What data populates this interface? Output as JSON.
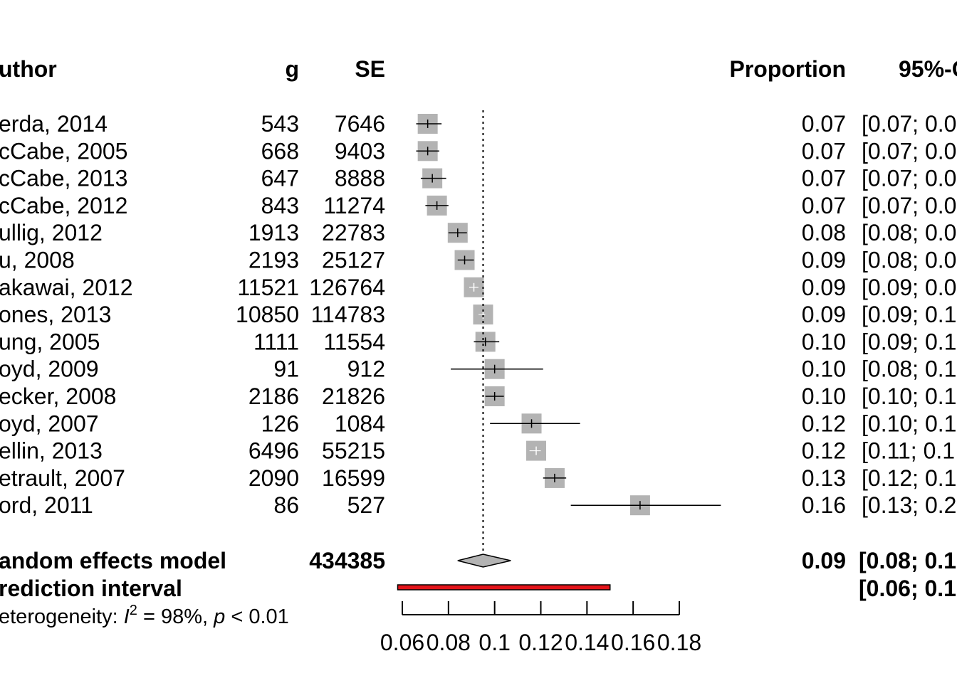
{
  "chart_data": {
    "type": "forest",
    "headers": {
      "author": "uthor",
      "g": "g",
      "se": "SE",
      "proportion": "Proportion",
      "ci": "95%-C"
    },
    "studies": [
      {
        "author": "erda, 2014",
        "g": "543",
        "se": "7646",
        "prop": 0.071,
        "lower": 0.066,
        "upper": 0.077,
        "weight": 1.0,
        "prop_label": "0.07",
        "ci_label": "[0.07; 0.0"
      },
      {
        "author": "cCabe, 2005",
        "g": "668",
        "se": "9403",
        "prop": 0.071,
        "lower": 0.066,
        "upper": 0.076,
        "weight": 1.0,
        "prop_label": "0.07",
        "ci_label": "[0.07; 0.0"
      },
      {
        "author": "cCabe, 2013",
        "g": "647",
        "se": "8888",
        "prop": 0.073,
        "lower": 0.068,
        "upper": 0.079,
        "weight": 1.0,
        "prop_label": "0.07",
        "ci_label": "[0.07; 0.0"
      },
      {
        "author": "cCabe, 2012",
        "g": "843",
        "se": "11274",
        "prop": 0.075,
        "lower": 0.07,
        "upper": 0.08,
        "weight": 1.0,
        "prop_label": "0.07",
        "ci_label": "[0.07; 0.0"
      },
      {
        "author": "ullig, 2012",
        "g": "1913",
        "se": "22783",
        "prop": 0.084,
        "lower": 0.08,
        "upper": 0.088,
        "weight": 1.0,
        "prop_label": "0.08",
        "ci_label": "[0.08; 0.0"
      },
      {
        "author": "u, 2008",
        "g": "2193",
        "se": "25127",
        "prop": 0.087,
        "lower": 0.084,
        "upper": 0.091,
        "weight": 1.0,
        "prop_label": "0.09",
        "ci_label": "[0.08; 0.0"
      },
      {
        "author": "akawai, 2012",
        "g": "11521",
        "se": "126764",
        "prop": 0.091,
        "lower": 0.089,
        "upper": 0.093,
        "weight": 1.0,
        "prop_label": "0.09",
        "ci_label": "[0.09; 0.0"
      },
      {
        "author": "ones, 2013",
        "g": "10850",
        "se": "114783",
        "prop": 0.095,
        "lower": 0.093,
        "upper": 0.096,
        "weight": 1.0,
        "prop_label": "0.09",
        "ci_label": "[0.09; 0.1"
      },
      {
        "author": "ung, 2005",
        "g": "1111",
        "se": "11554",
        "prop": 0.096,
        "lower": 0.091,
        "upper": 0.102,
        "weight": 1.0,
        "prop_label": "0.10",
        "ci_label": "[0.09; 0.1"
      },
      {
        "author": "oyd, 2009",
        "g": "91",
        "se": "912",
        "prop": 0.1,
        "lower": 0.081,
        "upper": 0.121,
        "weight": 1.0,
        "prop_label": "0.10",
        "ci_label": "[0.08; 0.1"
      },
      {
        "author": "ecker, 2008",
        "g": "2186",
        "se": "21826",
        "prop": 0.1,
        "lower": 0.096,
        "upper": 0.104,
        "weight": 1.0,
        "prop_label": "0.10",
        "ci_label": "[0.10; 0.1"
      },
      {
        "author": "oyd, 2007",
        "g": "126",
        "se": "1084",
        "prop": 0.116,
        "lower": 0.098,
        "upper": 0.137,
        "weight": 1.0,
        "prop_label": "0.12",
        "ci_label": "[0.10; 0.1"
      },
      {
        "author": "ellin, 2013",
        "g": "6496",
        "se": "55215",
        "prop": 0.118,
        "lower": 0.115,
        "upper": 0.12,
        "weight": 1.0,
        "prop_label": "0.12",
        "ci_label": "[0.11; 0.1"
      },
      {
        "author": "etrault, 2007",
        "g": "2090",
        "se": "16599",
        "prop": 0.126,
        "lower": 0.121,
        "upper": 0.131,
        "weight": 1.0,
        "prop_label": "0.13",
        "ci_label": "[0.12; 0.1"
      },
      {
        "author": "ord, 2011",
        "g": "86",
        "se": "527",
        "prop": 0.163,
        "lower": 0.133,
        "upper": 0.198,
        "weight": 1.0,
        "prop_label": "0.16",
        "ci_label": "[0.13; 0.2"
      }
    ],
    "summary": {
      "label": "andom effects model",
      "total": "434385",
      "prop": 0.095,
      "lower": 0.084,
      "upper": 0.107,
      "prop_label": "0.09",
      "ci_label": "[0.08; 0.1"
    },
    "prediction": {
      "label": "rediction interval",
      "lower": 0.058,
      "upper": 0.15,
      "ci_label": "[0.06; 0.1",
      "color": "#e4141a"
    },
    "heterogeneity": {
      "prefix": "eterogeneity: ",
      "i": "I",
      "sup": "2",
      "middle": " = 98%, ",
      "p": "p",
      "suffix": " < 0.01"
    },
    "axis": {
      "ticks": [
        0.06,
        0.08,
        0.1,
        0.12,
        0.14,
        0.16,
        0.18
      ],
      "tick_labels": [
        "0.06",
        "0.08",
        "0.1",
        "0.12",
        "0.14",
        "0.16",
        "0.18"
      ]
    },
    "reference_line": 0.095,
    "colors": {
      "box": "#b3b3b3",
      "diamond": "#b3b3b3",
      "line": "#000000"
    }
  }
}
